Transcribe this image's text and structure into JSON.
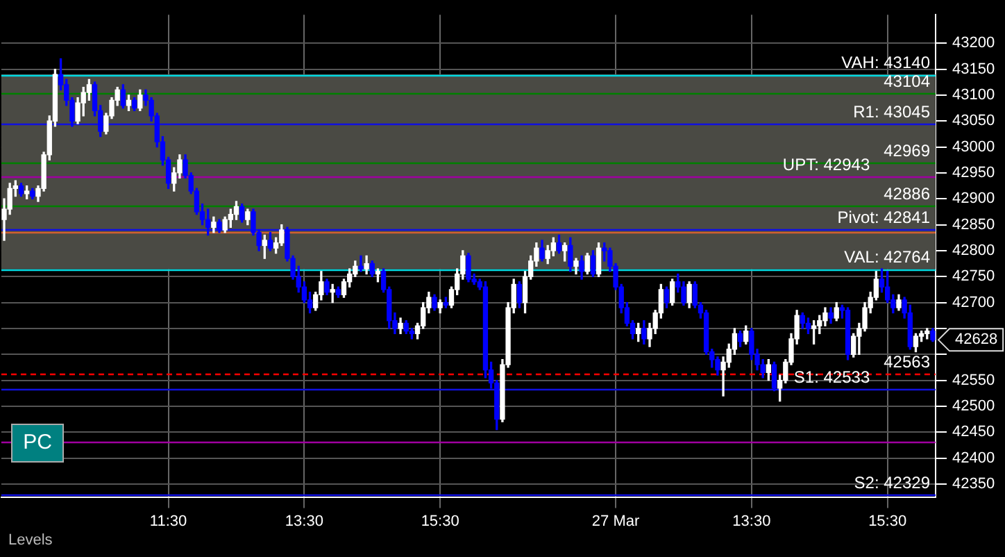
{
  "chart_data": {
    "type": "candlestick",
    "categories": [
      null,
      null,
      null,
      null,
      null,
      null,
      null,
      null,
      null,
      null,
      null,
      null,
      null,
      null,
      null,
      null,
      null,
      null,
      null,
      null,
      null,
      null,
      null,
      null,
      null,
      null,
      null,
      null,
      null,
      "11:30",
      null,
      null,
      null,
      null,
      null,
      null,
      null,
      null,
      null,
      null,
      null,
      null,
      null,
      null,
      null,
      null,
      null,
      null,
      null,
      null,
      null,
      null,
      null,
      "13:30",
      null,
      null,
      null,
      null,
      null,
      null,
      null,
      null,
      null,
      null,
      null,
      null,
      null,
      null,
      null,
      null,
      null,
      null,
      null,
      null,
      null,
      null,
      null,
      "15:30",
      null,
      null,
      null,
      null,
      null,
      null,
      null,
      null,
      null,
      null,
      null,
      null,
      null,
      null,
      null,
      null,
      null,
      null,
      null,
      null,
      null,
      null,
      null,
      null,
      null,
      null,
      null,
      null,
      null,
      null,
      "27 Mar",
      null,
      null,
      null,
      null,
      null,
      null,
      null,
      null,
      null,
      null,
      null,
      null,
      null,
      null,
      null,
      null,
      null,
      null,
      null,
      null,
      null,
      null,
      null,
      "13:30",
      null,
      null,
      null,
      null,
      null,
      null,
      null,
      null,
      null,
      null,
      null,
      null,
      null,
      null,
      null,
      null,
      null,
      null,
      null,
      null,
      null,
      null,
      null,
      "15:30",
      null,
      null,
      null,
      null,
      null,
      null,
      null,
      null
    ],
    "ohlc": [
      [
        42860,
        42900,
        42820,
        42880
      ],
      [
        42880,
        42930,
        42870,
        42920
      ],
      [
        42920,
        42935,
        42905,
        42925
      ],
      [
        42925,
        42930,
        42905,
        42910
      ],
      [
        42910,
        42925,
        42900,
        42915
      ],
      [
        42915,
        42920,
        42900,
        42905
      ],
      [
        42905,
        42925,
        42895,
        42920
      ],
      [
        42920,
        42990,
        42915,
        42985
      ],
      [
        42985,
        43060,
        42975,
        43050
      ],
      [
        43050,
        43150,
        43040,
        43140
      ],
      [
        43140,
        43170,
        43110,
        43120
      ],
      [
        43120,
        43130,
        43080,
        43090
      ],
      [
        43090,
        43095,
        43040,
        43050
      ],
      [
        43050,
        43095,
        43045,
        43085
      ],
      [
        43085,
        43115,
        43060,
        43105
      ],
      [
        43105,
        43130,
        43090,
        43120
      ],
      [
        43120,
        43125,
        43060,
        43070
      ],
      [
        43070,
        43080,
        43020,
        43030
      ],
      [
        43030,
        43065,
        43025,
        43060
      ],
      [
        43060,
        43095,
        43055,
        43090
      ],
      [
        43090,
        43115,
        43080,
        43110
      ],
      [
        43110,
        43120,
        43075,
        43080
      ],
      [
        43080,
        43100,
        43070,
        43090
      ],
      [
        43090,
        43095,
        43070,
        43075
      ],
      [
        43075,
        43110,
        43070,
        43100
      ],
      [
        43100,
        43110,
        43080,
        43090
      ],
      [
        43090,
        43095,
        43050,
        43060
      ],
      [
        43060,
        43065,
        43000,
        43010
      ],
      [
        43010,
        43020,
        42965,
        42975
      ],
      [
        42975,
        42980,
        42920,
        42930
      ],
      [
        42930,
        42960,
        42915,
        42950
      ],
      [
        42950,
        42985,
        42940,
        42975
      ],
      [
        42975,
        42985,
        42940,
        42945
      ],
      [
        42945,
        42950,
        42910,
        42915
      ],
      [
        42915,
        42920,
        42870,
        42875
      ],
      [
        42875,
        42890,
        42850,
        42860
      ],
      [
        42860,
        42880,
        42830,
        42845
      ],
      [
        42845,
        42865,
        42835,
        42855
      ],
      [
        42855,
        42860,
        42835,
        42840
      ],
      [
        42840,
        42865,
        42835,
        42860
      ],
      [
        42860,
        42880,
        42845,
        42870
      ],
      [
        42870,
        42895,
        42860,
        42885
      ],
      [
        42885,
        42890,
        42855,
        42860
      ],
      [
        42860,
        42880,
        42850,
        42875
      ],
      [
        42875,
        42880,
        42830,
        42835
      ],
      [
        42835,
        42840,
        42800,
        42810
      ],
      [
        42810,
        42830,
        42785,
        42820
      ],
      [
        42820,
        42835,
        42800,
        42805
      ],
      [
        42805,
        42825,
        42795,
        42815
      ],
      [
        42815,
        42850,
        42810,
        42840
      ],
      [
        42840,
        42845,
        42780,
        42785
      ],
      [
        42785,
        42790,
        42745,
        42750
      ],
      [
        42750,
        42770,
        42720,
        42730
      ],
      [
        42730,
        42740,
        42700,
        42705
      ],
      [
        42705,
        42720,
        42680,
        42690
      ],
      [
        42690,
        42720,
        42685,
        42715
      ],
      [
        42715,
        42760,
        42705,
        42740
      ],
      [
        42740,
        42745,
        42715,
        42720
      ],
      [
        42720,
        42735,
        42700,
        42725
      ],
      [
        42725,
        42730,
        42710,
        42715
      ],
      [
        42715,
        42745,
        42710,
        42740
      ],
      [
        42740,
        42765,
        42730,
        42755
      ],
      [
        42755,
        42780,
        42750,
        42770
      ],
      [
        42770,
        42790,
        42760,
        42765
      ],
      [
        42765,
        42790,
        42755,
        42775
      ],
      [
        42775,
        42780,
        42750,
        42755
      ],
      [
        42755,
        42765,
        42740,
        42760
      ],
      [
        42760,
        42765,
        42720,
        42725
      ],
      [
        42725,
        42730,
        42650,
        42665
      ],
      [
        42665,
        42680,
        42640,
        42650
      ],
      [
        42650,
        42670,
        42640,
        42660
      ],
      [
        42660,
        42665,
        42640,
        42645
      ],
      [
        42645,
        42650,
        42630,
        42640
      ],
      [
        42640,
        42660,
        42630,
        42655
      ],
      [
        42655,
        42700,
        42650,
        42690
      ],
      [
        42690,
        42720,
        42680,
        42710
      ],
      [
        42710,
        42715,
        42685,
        42690
      ],
      [
        42690,
        42705,
        42680,
        42700
      ],
      [
        42700,
        42710,
        42690,
        42695
      ],
      [
        42695,
        42730,
        42690,
        42725
      ],
      [
        42725,
        42765,
        42715,
        42755
      ],
      [
        42755,
        42800,
        42745,
        42790
      ],
      [
        42790,
        42795,
        42740,
        42745
      ],
      [
        42745,
        42755,
        42735,
        42740
      ],
      [
        42740,
        42745,
        42725,
        42730
      ],
      [
        42730,
        42740,
        42555,
        42570
      ],
      [
        42570,
        42585,
        42535,
        42545
      ],
      [
        42545,
        42550,
        42455,
        42475
      ],
      [
        42475,
        42590,
        42470,
        42580
      ],
      [
        42580,
        42700,
        42575,
        42690
      ],
      [
        42690,
        42745,
        42680,
        42735
      ],
      [
        42735,
        42740,
        42690,
        42700
      ],
      [
        42700,
        42760,
        42680,
        42750
      ],
      [
        42750,
        42790,
        42745,
        42780
      ],
      [
        42780,
        42815,
        42770,
        42805
      ],
      [
        42805,
        42820,
        42780,
        42785
      ],
      [
        42785,
        42810,
        42775,
        42800
      ],
      [
        42800,
        42825,
        42790,
        42815
      ],
      [
        42815,
        42830,
        42795,
        42800
      ],
      [
        42800,
        42815,
        42780,
        42810
      ],
      [
        42810,
        42825,
        42760,
        42770
      ],
      [
        42770,
        42785,
        42755,
        42780
      ],
      [
        42780,
        42790,
        42745,
        42760
      ],
      [
        42760,
        42795,
        42755,
        42790
      ],
      [
        42790,
        42800,
        42750,
        42755
      ],
      [
        42755,
        42815,
        42750,
        42805
      ],
      [
        42805,
        42815,
        42780,
        42800
      ],
      [
        42800,
        42805,
        42760,
        42770
      ],
      [
        42770,
        42775,
        42725,
        42730
      ],
      [
        42730,
        42735,
        42680,
        42690
      ],
      [
        42690,
        42700,
        42655,
        42660
      ],
      [
        42660,
        42665,
        42630,
        42640
      ],
      [
        42640,
        42660,
        42625,
        42650
      ],
      [
        42650,
        42665,
        42620,
        42630
      ],
      [
        42630,
        42660,
        42615,
        42650
      ],
      [
        42650,
        42685,
        42640,
        42680
      ],
      [
        42680,
        42735,
        42670,
        42725
      ],
      [
        42725,
        42730,
        42690,
        42700
      ],
      [
        42700,
        42745,
        42695,
        42740
      ],
      [
        42740,
        42755,
        42720,
        42730
      ],
      [
        42730,
        42740,
        42695,
        42700
      ],
      [
        42700,
        42740,
        42690,
        42735
      ],
      [
        42735,
        42740,
        42690,
        42695
      ],
      [
        42695,
        42700,
        42670,
        42680
      ],
      [
        42680,
        42685,
        42600,
        42605
      ],
      [
        42605,
        42610,
        42575,
        42590
      ],
      [
        42590,
        42595,
        42560,
        42570
      ],
      [
        42570,
        42595,
        42520,
        42585
      ],
      [
        42585,
        42620,
        42575,
        42610
      ],
      [
        42610,
        42650,
        42600,
        42640
      ],
      [
        42640,
        42645,
        42615,
        42625
      ],
      [
        42625,
        42655,
        42620,
        42645
      ],
      [
        42645,
        42650,
        42590,
        42600
      ],
      [
        42600,
        42610,
        42570,
        42580
      ],
      [
        42580,
        42590,
        42555,
        42565
      ],
      [
        42565,
        42590,
        42550,
        42580
      ],
      [
        42580,
        42585,
        42530,
        42535
      ],
      [
        42535,
        42560,
        42510,
        42550
      ],
      [
        42550,
        42590,
        42545,
        42585
      ],
      [
        42585,
        42640,
        42580,
        42630
      ],
      [
        42630,
        42685,
        42620,
        42675
      ],
      [
        42675,
        42680,
        42650,
        42660
      ],
      [
        42660,
        42670,
        42640,
        42650
      ],
      [
        42650,
        42665,
        42620,
        42655
      ],
      [
        42655,
        42675,
        42640,
        42665
      ],
      [
        42665,
        42690,
        42655,
        42680
      ],
      [
        42680,
        42690,
        42660,
        42670
      ],
      [
        42670,
        42700,
        42665,
        42690
      ],
      [
        42690,
        42695,
        42670,
        42685
      ],
      [
        42685,
        42690,
        42590,
        42600
      ],
      [
        42600,
        42640,
        42595,
        42635
      ],
      [
        42635,
        42660,
        42600,
        42650
      ],
      [
        42650,
        42700,
        42645,
        42690
      ],
      [
        42690,
        42720,
        42680,
        42710
      ],
      [
        42710,
        42760,
        42705,
        42745
      ],
      [
        42745,
        42765,
        42720,
        42730
      ],
      [
        42730,
        42760,
        42700,
        42705
      ],
      [
        42705,
        42715,
        42680,
        42690
      ],
      [
        42690,
        42715,
        42685,
        42705
      ],
      [
        42705,
        42710,
        42670,
        42680
      ],
      [
        42680,
        42695,
        42610,
        42615
      ],
      [
        42615,
        42640,
        42605,
        42635
      ],
      [
        42635,
        42645,
        42625,
        42640
      ],
      [
        42640,
        42650,
        42630,
        42645
      ],
      [
        42645,
        42650,
        42625,
        42628
      ]
    ],
    "colors": [
      "#ffffff",
      "#ffffff",
      "#ffffff",
      "#0000ff",
      "#ffffff",
      "#0000ff",
      "#ffffff",
      "#ffffff",
      "#ffffff",
      "#ffffff",
      "#0000ff",
      "#0000ff",
      "#0000ff",
      "#ffffff",
      "#ffffff",
      "#ffffff",
      "#0000ff",
      "#0000ff",
      "#ffffff",
      "#ffffff",
      "#ffffff",
      "#0000ff",
      "#ffffff",
      "#0000ff",
      "#ffffff",
      "#0000ff",
      "#0000ff",
      "#0000ff",
      "#0000ff",
      "#0000ff",
      "#ffffff",
      "#ffffff",
      "#0000ff",
      "#0000ff",
      "#0000ff",
      "#0000ff",
      "#0000ff",
      "#ffffff",
      "#0000ff",
      "#ffffff",
      "#ffffff",
      "#ffffff",
      "#0000ff",
      "#ffffff",
      "#0000ff",
      "#0000ff",
      "#ffffff",
      "#0000ff",
      "#ffffff",
      "#ffffff",
      "#0000ff",
      "#0000ff",
      "#0000ff",
      "#0000ff",
      "#0000ff",
      "#ffffff",
      "#ffffff",
      "#0000ff",
      "#ffffff",
      "#0000ff",
      "#ffffff",
      "#ffffff",
      "#ffffff",
      "#0000ff",
      "#ffffff",
      "#0000ff",
      "#ffffff",
      "#0000ff",
      "#0000ff",
      "#0000ff",
      "#ffffff",
      "#0000ff",
      "#0000ff",
      "#ffffff",
      "#ffffff",
      "#ffffff",
      "#0000ff",
      "#ffffff",
      "#0000ff",
      "#ffffff",
      "#ffffff",
      "#ffffff",
      "#0000ff",
      "#0000ff",
      "#0000ff",
      "#0000ff",
      "#0000ff",
      "#0000ff",
      "#ffffff",
      "#ffffff",
      "#ffffff",
      "#0000ff",
      "#ffffff",
      "#ffffff",
      "#ffffff",
      "#0000ff",
      "#ffffff",
      "#ffffff",
      "#0000ff",
      "#ffffff",
      "#0000ff",
      "#ffffff",
      "#0000ff",
      "#ffffff",
      "#0000ff",
      "#ffffff",
      "#0000ff",
      "#0000ff",
      "#0000ff",
      "#0000ff",
      "#0000ff",
      "#0000ff",
      "#ffffff",
      "#0000ff",
      "#ffffff",
      "#ffffff",
      "#ffffff",
      "#0000ff",
      "#ffffff",
      "#0000ff",
      "#0000ff",
      "#ffffff",
      "#0000ff",
      "#0000ff",
      "#0000ff",
      "#0000ff",
      "#0000ff",
      "#ffffff",
      "#ffffff",
      "#ffffff",
      "#0000ff",
      "#ffffff",
      "#0000ff",
      "#0000ff",
      "#0000ff",
      "#ffffff",
      "#0000ff",
      "#ffffff",
      "#ffffff",
      "#ffffff",
      "#ffffff",
      "#0000ff",
      "#0000ff",
      "#ffffff",
      "#ffffff",
      "#ffffff",
      "#0000ff",
      "#ffffff",
      "#0000ff",
      "#0000ff",
      "#ffffff",
      "#ffffff",
      "#ffffff",
      "#ffffff",
      "#ffffff",
      "#0000ff",
      "#0000ff",
      "#0000ff",
      "#ffffff",
      "#0000ff",
      "#0000ff",
      "#ffffff",
      "#ffffff",
      "#ffffff",
      "#0000ff"
    ],
    "ylim": [
      42325,
      43255
    ],
    "yticks": [
      42350,
      42400,
      42450,
      42500,
      42550,
      {
        "value": 42600,
        "label": null
      },
      {
        "value": 42650,
        "label": null
      },
      42700,
      42750,
      42800,
      42850,
      42900,
      42950,
      43000,
      43050,
      43100,
      43150,
      43200
    ],
    "grid": true,
    "legend": false,
    "bands": [
      {
        "axis": "y",
        "from": 42764,
        "to": 43140,
        "color": "#4a4a44"
      }
    ],
    "ref_lines": [
      {
        "axis": "y",
        "value": 43140,
        "label": "VAH: 43140",
        "color": "#00d8e0"
      },
      {
        "axis": "y",
        "value": 43104,
        "label": "43104",
        "color": "#008000"
      },
      {
        "axis": "y",
        "value": 43045,
        "label": "R1: 43045",
        "color": "#1010e0"
      },
      {
        "axis": "y",
        "value": 42969,
        "label": "42969",
        "color": "#008000"
      },
      {
        "axis": "y",
        "value": 42943,
        "label": "UPT: 42943",
        "color": "#a000a0"
      },
      {
        "axis": "y",
        "value": 42886,
        "label": "42886",
        "color": "#008000"
      },
      {
        "axis": "y",
        "value": 42841,
        "label": "Pivot: 42841",
        "color": "#1010e0"
      },
      {
        "axis": "y",
        "value": 42835,
        "label": null,
        "color": "#d06030"
      },
      {
        "axis": "y",
        "value": 42764,
        "label": "VAL: 42764",
        "color": "#00d8e0"
      },
      {
        "axis": "y",
        "value": 42563,
        "label": "42563",
        "color": "#ff0000",
        "line_style": "dashed"
      },
      {
        "axis": "y",
        "value": 42533,
        "label": "S1: 42533",
        "color": "#1010e0"
      },
      {
        "axis": "y",
        "value": 42431,
        "label": null,
        "color": "#a000a0"
      },
      {
        "axis": "y",
        "value": 42329,
        "label": "S2: 42329",
        "color": "#1010e0"
      }
    ],
    "annotations": [
      "Levels",
      "PC",
      "42628"
    ]
  }
}
